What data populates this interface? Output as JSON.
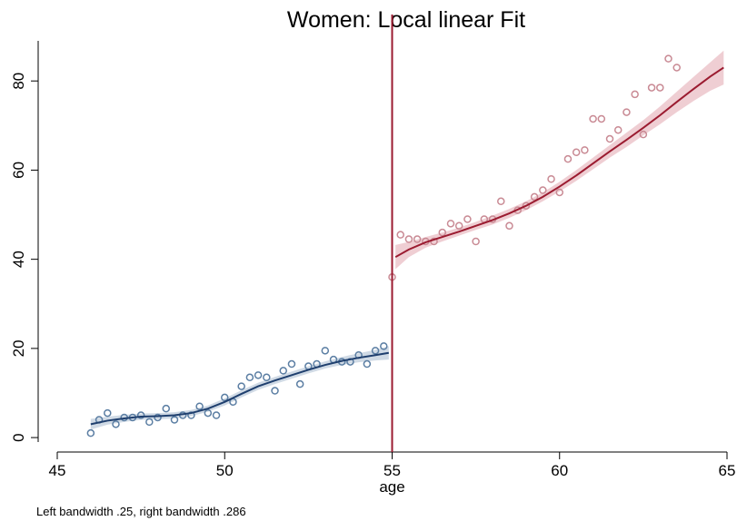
{
  "chart_data": {
    "type": "scatter",
    "title": "Women: Local linear Fit",
    "xlabel": "age",
    "ylabel": "",
    "note": "Left bandwidth .25, right bandwidth .286",
    "xlim": [
      45,
      65
    ],
    "ylim": [
      -1,
      89
    ],
    "xticks": [
      45,
      50,
      55,
      60,
      65
    ],
    "yticks": [
      0,
      20,
      40,
      60,
      80
    ],
    "grid": false,
    "cutoff": 55,
    "colors": {
      "left_points": "#5b7ea3",
      "left_line": "#1f3f6e",
      "left_band": "#c8d3e0",
      "right_points": "#c98a94",
      "right_line": "#9b1b30",
      "right_band": "#ecc6cb",
      "cutoff_line": "#9b1b30"
    },
    "series": [
      {
        "name": "",
        "role": "left_points",
        "x": [
          46.0,
          46.25,
          46.5,
          46.75,
          47.0,
          47.25,
          47.5,
          47.75,
          48.0,
          48.25,
          48.5,
          48.75,
          49.0,
          49.25,
          49.5,
          49.75,
          50.0,
          50.25,
          50.5,
          50.75,
          51.0,
          51.25,
          51.5,
          51.75,
          52.0,
          52.25,
          52.5,
          52.75,
          53.0,
          53.25,
          53.5,
          53.75,
          54.0,
          54.25,
          54.5,
          54.75
        ],
        "y": [
          1,
          4,
          5.5,
          3,
          4.5,
          4.5,
          5,
          3.5,
          4.5,
          6.5,
          4,
          5,
          5,
          7,
          5.5,
          5,
          9,
          8,
          11.5,
          13.5,
          14,
          13.5,
          10.5,
          15,
          16.5,
          12,
          16,
          16.5,
          19.5,
          17.5,
          17,
          17,
          18.5,
          16.5,
          19.5,
          20.5
        ]
      },
      {
        "name": "",
        "role": "left_fit",
        "x": [
          46.0,
          46.5,
          47.0,
          47.5,
          48.0,
          48.5,
          49.0,
          49.5,
          50.0,
          50.5,
          51.0,
          51.5,
          52.0,
          52.5,
          53.0,
          53.5,
          54.0,
          54.5,
          54.9
        ],
        "y": [
          3,
          3.8,
          4.3,
          4.7,
          4.8,
          5.0,
          5.5,
          6.5,
          8.0,
          9.8,
          11.5,
          12.8,
          14.0,
          15.2,
          16.3,
          17.2,
          17.9,
          18.5,
          19.0
        ],
        "band_lo": [
          1.8,
          2.9,
          3.5,
          4.0,
          4.1,
          4.3,
          4.8,
          5.8,
          7.2,
          9.0,
          10.7,
          12.0,
          13.2,
          14.4,
          15.5,
          16.3,
          16.9,
          17.3,
          17.5
        ],
        "band_hi": [
          4.2,
          4.7,
          5.1,
          5.4,
          5.5,
          5.7,
          6.2,
          7.2,
          8.8,
          10.6,
          12.3,
          13.6,
          14.8,
          16.0,
          17.1,
          18.1,
          18.9,
          19.7,
          20.5
        ]
      },
      {
        "name": "",
        "role": "right_points",
        "x": [
          55.0,
          55.25,
          55.5,
          55.75,
          56.0,
          56.25,
          56.5,
          56.75,
          57.0,
          57.25,
          57.5,
          57.75,
          58.0,
          58.25,
          58.5,
          58.75,
          59.0,
          59.25,
          59.5,
          59.75,
          60.0,
          60.25,
          60.5,
          60.75,
          61.0,
          61.25,
          61.5,
          61.75,
          62.0,
          62.25,
          62.5,
          62.75,
          63.0,
          63.25,
          63.5,
          63.75,
          64.0,
          64.25,
          64.5
        ],
        "y": [
          36,
          45.5,
          44.5,
          44.5,
          44,
          44,
          46,
          48,
          47.5,
          49,
          44,
          49,
          49,
          53,
          47.5,
          51,
          52,
          54,
          55.5,
          58,
          55,
          62.5,
          64,
          64.5,
          71.5,
          71.5,
          67,
          69,
          73,
          77,
          68,
          78.5,
          78.5,
          85,
          83,
          null,
          null,
          null,
          null
        ]
      },
      {
        "name": "",
        "role": "right_fit",
        "x": [
          55.1,
          55.5,
          56.0,
          56.5,
          57.0,
          57.5,
          58.0,
          58.5,
          59.0,
          59.5,
          60.0,
          60.5,
          61.0,
          61.5,
          62.0,
          62.5,
          63.0,
          63.5,
          64.0,
          64.5,
          64.9
        ],
        "y": [
          40.5,
          42.2,
          43.8,
          45.0,
          46.2,
          47.5,
          48.8,
          50.3,
          52.0,
          54.0,
          56.3,
          58.8,
          61.5,
          64.2,
          66.8,
          69.5,
          72.3,
          75.3,
          78.2,
          81.0,
          83.0
        ],
        "band_lo": [
          37.8,
          40.5,
          42.6,
          44.0,
          45.3,
          46.6,
          47.8,
          49.3,
          51.0,
          53.0,
          55.2,
          57.6,
          60.2,
          62.8,
          65.2,
          67.8,
          70.3,
          73.0,
          75.5,
          77.8,
          79.2
        ],
        "band_hi": [
          43.2,
          43.9,
          45.0,
          46.0,
          47.1,
          48.4,
          49.8,
          51.3,
          53.0,
          55.0,
          57.4,
          60.0,
          62.8,
          65.6,
          68.4,
          71.2,
          74.3,
          77.6,
          80.9,
          84.2,
          86.8
        ]
      }
    ]
  }
}
